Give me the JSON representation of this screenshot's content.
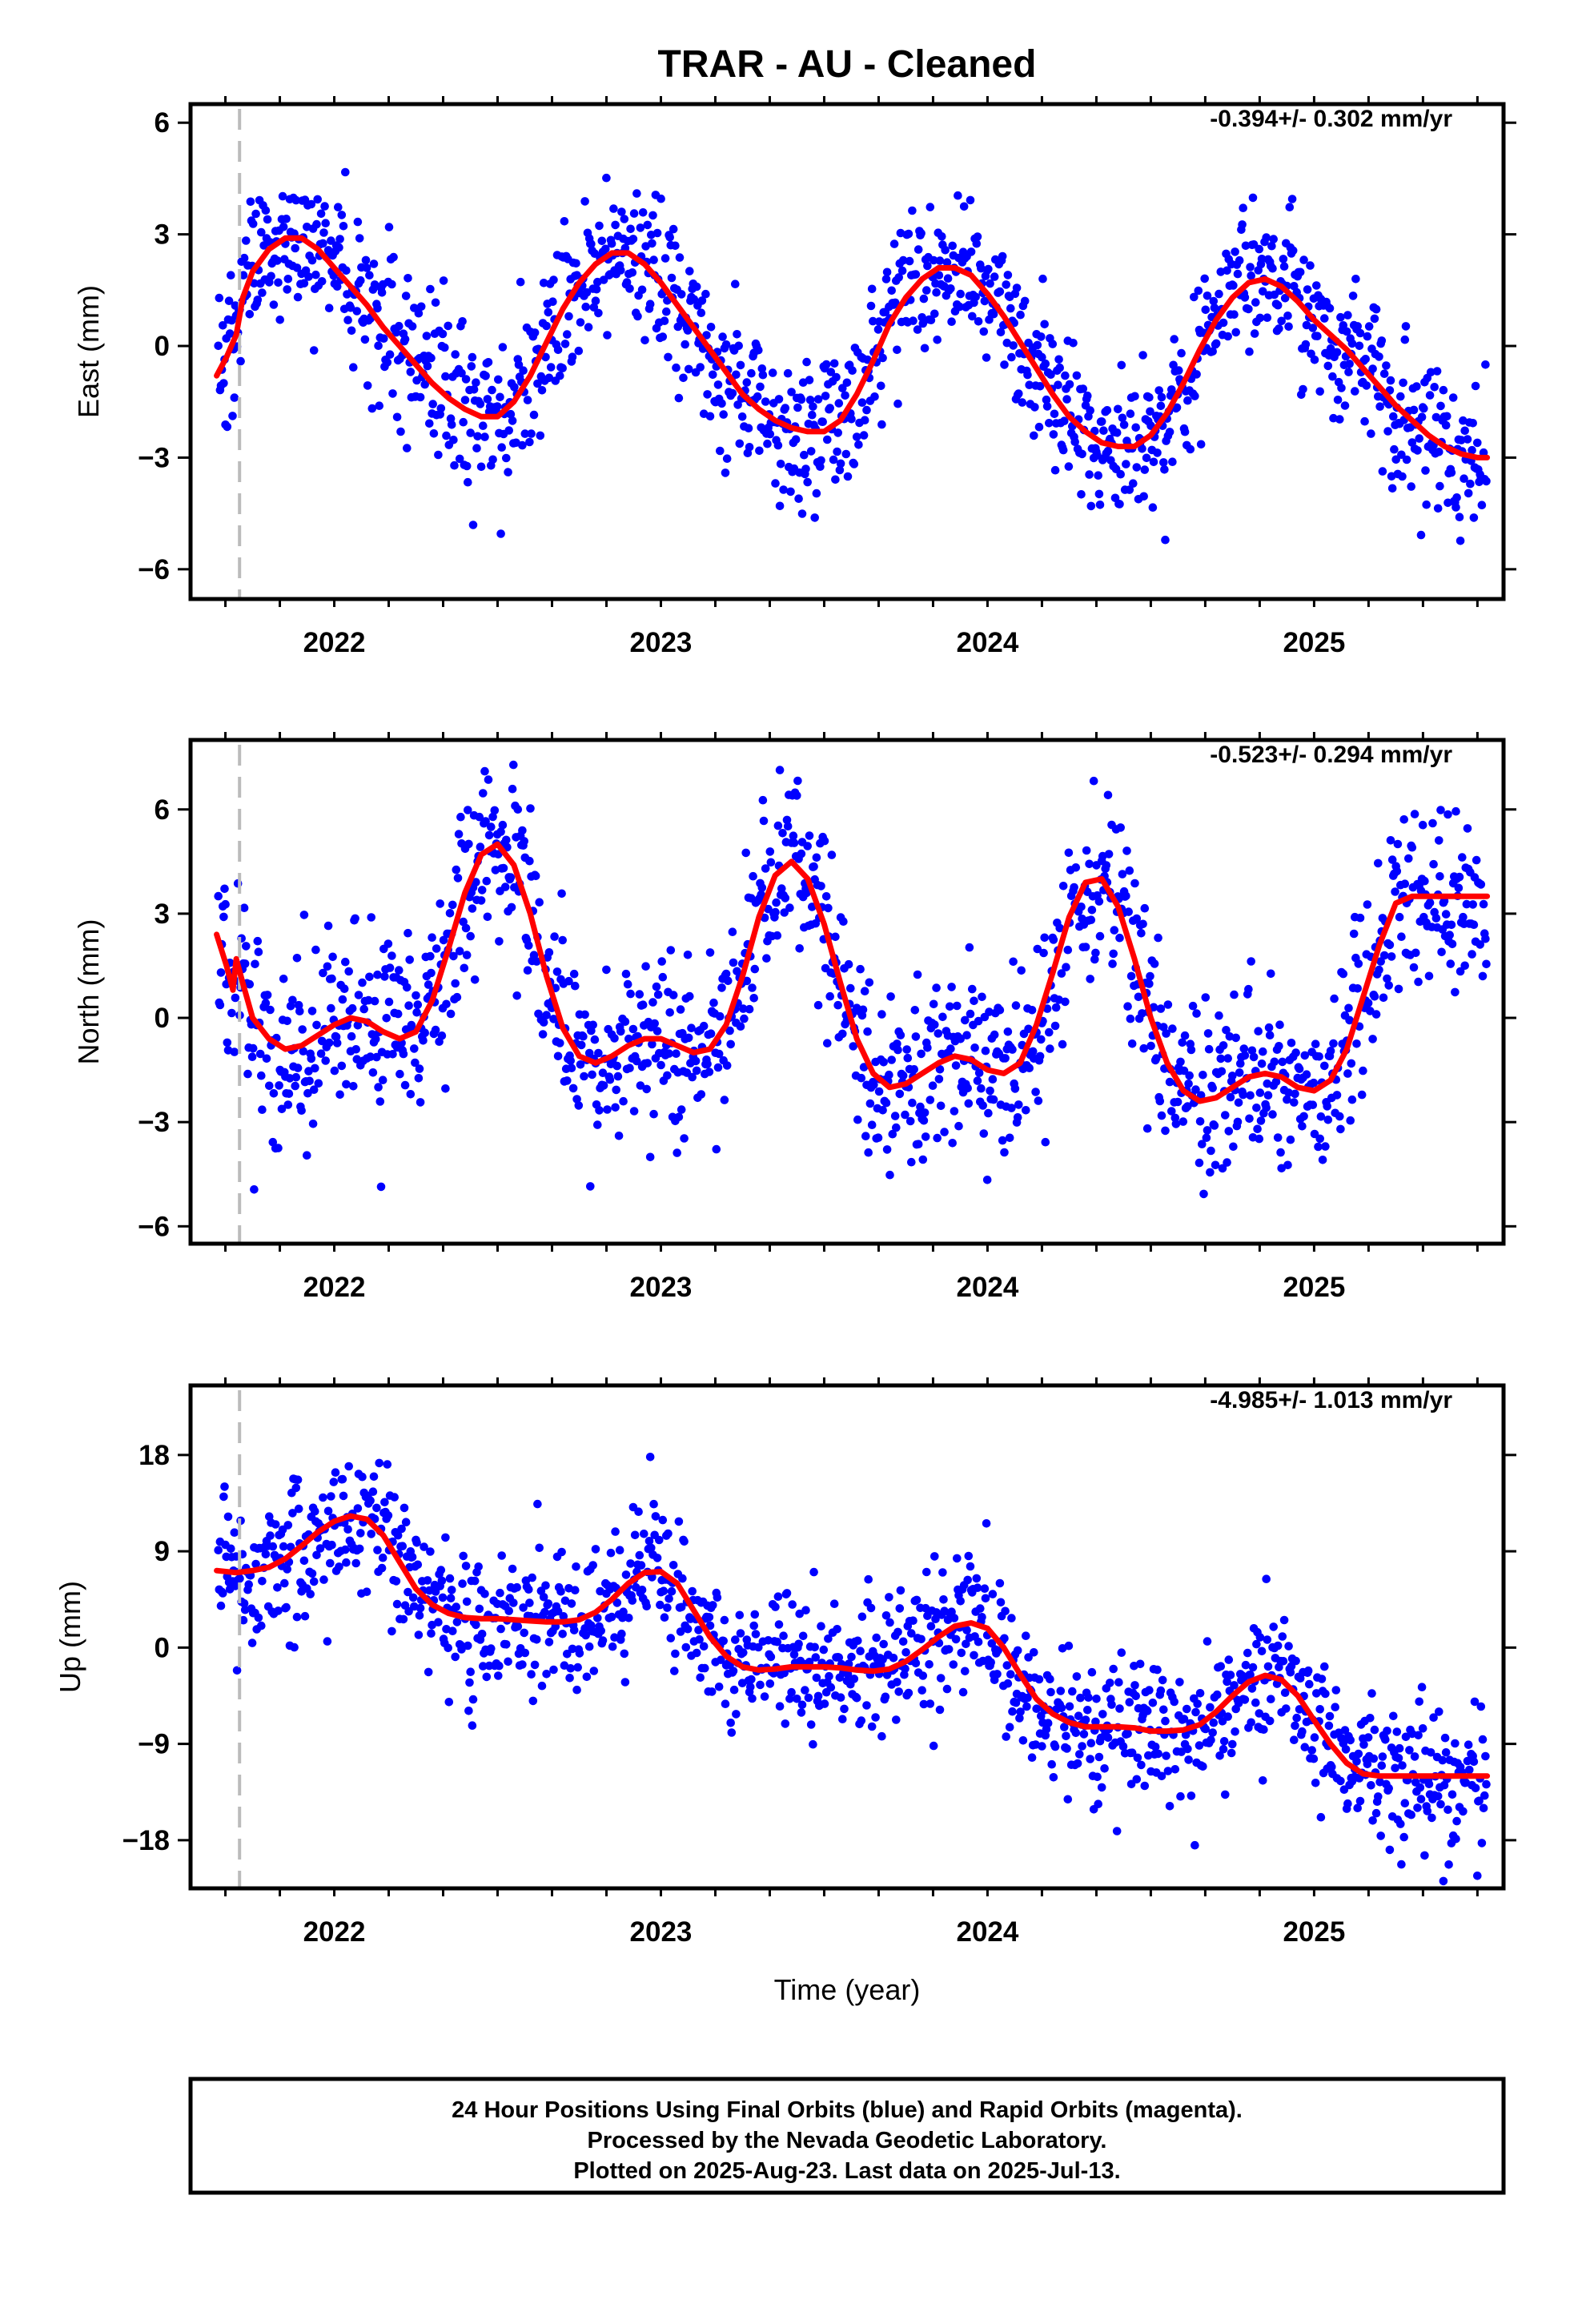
{
  "title": "TRAR  - AU - Cleaned",
  "xlabel": "Time (year)",
  "colors": {
    "points": "#0000ff",
    "model": "#ff0000",
    "marker": "#bbbbbb",
    "frame": "#000000"
  },
  "footer": {
    "line1": "24 Hour Positions Using Final Orbits (blue) and Rapid Orbits (magenta).",
    "line2": "Processed by the Nevada Geodetic Laboratory.",
    "line3": "Plotted on 2025-Aug-23. Last data on 2025-Jul-13."
  },
  "chart_data": [
    {
      "type": "scatter",
      "component": "east",
      "ylabel": "East (mm)",
      "rate": "-0.394+/- 0.302 mm/yr",
      "xlim": [
        2021.56,
        2025.58
      ],
      "ylim": [
        -6.8,
        6.5
      ],
      "yticks": [
        -6,
        -3,
        0,
        3,
        6
      ],
      "ytick_labels": [
        "−6",
        "−3",
        "0",
        "3",
        "6"
      ],
      "xticks": [
        2022,
        2023,
        2024,
        2025
      ],
      "xtick_labels": [
        "2022",
        "2023",
        "2024",
        "2025"
      ],
      "minor_x_step": 0.16666667,
      "equipment_change": 2021.71,
      "series": [
        {
          "kind": "model",
          "x": [
            2021.64,
            2021.67,
            2021.7,
            2021.72,
            2021.75,
            2021.8,
            2021.85,
            2021.9,
            2021.95,
            2022.0,
            2022.05,
            2022.1,
            2022.15,
            2022.2,
            2022.25,
            2022.3,
            2022.35,
            2022.4,
            2022.45,
            2022.5,
            2022.55,
            2022.6,
            2022.65,
            2022.7,
            2022.75,
            2022.8,
            2022.85,
            2022.9,
            2022.95,
            2023.0,
            2023.05,
            2023.1,
            2023.15,
            2023.2,
            2023.25,
            2023.3,
            2023.35,
            2023.4,
            2023.45,
            2023.5,
            2023.55,
            2023.6,
            2023.65,
            2023.7,
            2023.75,
            2023.8,
            2023.85,
            2023.9,
            2023.95,
            2024.0,
            2024.05,
            2024.1,
            2024.15,
            2024.2,
            2024.25,
            2024.3,
            2024.35,
            2024.4,
            2024.45,
            2024.5,
            2024.55,
            2024.6,
            2024.65,
            2024.7,
            2024.75,
            2024.8,
            2024.85,
            2024.9,
            2024.95,
            2025.0,
            2025.05,
            2025.1,
            2025.15,
            2025.2,
            2025.25,
            2025.3,
            2025.35,
            2025.4,
            2025.45,
            2025.5,
            2025.53
          ],
          "y": [
            -0.8,
            -0.3,
            0.3,
            1.3,
            2.0,
            2.6,
            2.9,
            2.9,
            2.6,
            2.1,
            1.6,
            1.1,
            0.5,
            0.0,
            -0.5,
            -1.0,
            -1.4,
            -1.7,
            -1.9,
            -1.9,
            -1.5,
            -0.8,
            0.1,
            1.0,
            1.7,
            2.2,
            2.5,
            2.5,
            2.2,
            1.7,
            1.1,
            0.5,
            -0.1,
            -0.7,
            -1.3,
            -1.7,
            -2.0,
            -2.2,
            -2.3,
            -2.3,
            -2.0,
            -1.3,
            -0.4,
            0.6,
            1.3,
            1.8,
            2.1,
            2.1,
            1.9,
            1.4,
            0.8,
            0.1,
            -0.6,
            -1.3,
            -1.9,
            -2.3,
            -2.6,
            -2.7,
            -2.7,
            -2.4,
            -1.8,
            -1.0,
            -0.1,
            0.7,
            1.3,
            1.7,
            1.8,
            1.6,
            1.2,
            0.7,
            0.3,
            -0.1,
            -0.6,
            -1.1,
            -1.6,
            -2.0,
            -2.4,
            -2.7,
            -2.9,
            -3.0,
            -3.0
          ]
        }
      ]
    },
    {
      "type": "scatter",
      "component": "north",
      "ylabel": "North (mm)",
      "rate": "-0.523+/- 0.294 mm/yr",
      "xlim": [
        2021.56,
        2025.58
      ],
      "ylim": [
        -6.5,
        8.0
      ],
      "yticks": [
        -6,
        -3,
        0,
        3,
        6
      ],
      "ytick_labels": [
        "−6",
        "−3",
        "0",
        "3",
        "6"
      ],
      "xticks": [
        2022,
        2023,
        2024,
        2025
      ],
      "xtick_labels": [
        "2022",
        "2023",
        "2024",
        "2025"
      ],
      "minor_x_step": 0.16666667,
      "equipment_change": 2021.71,
      "series": [
        {
          "kind": "model",
          "x": [
            2021.64,
            2021.67,
            2021.69,
            2021.7,
            2021.72,
            2021.75,
            2021.8,
            2021.85,
            2021.9,
            2021.95,
            2022.0,
            2022.05,
            2022.1,
            2022.15,
            2022.2,
            2022.25,
            2022.3,
            2022.35,
            2022.4,
            2022.45,
            2022.5,
            2022.55,
            2022.6,
            2022.65,
            2022.7,
            2022.75,
            2022.8,
            2022.85,
            2022.9,
            2022.95,
            2023.0,
            2023.05,
            2023.1,
            2023.15,
            2023.2,
            2023.25,
            2023.3,
            2023.35,
            2023.4,
            2023.45,
            2023.5,
            2023.55,
            2023.6,
            2023.65,
            2023.7,
            2023.75,
            2023.8,
            2023.85,
            2023.9,
            2023.95,
            2024.0,
            2024.05,
            2024.1,
            2024.15,
            2024.2,
            2024.25,
            2024.3,
            2024.35,
            2024.4,
            2024.45,
            2024.5,
            2024.55,
            2024.6,
            2024.65,
            2024.7,
            2024.75,
            2024.8,
            2024.85,
            2024.9,
            2024.95,
            2025.0,
            2025.05,
            2025.1,
            2025.15,
            2025.2,
            2025.25,
            2025.3,
            2025.35,
            2025.4,
            2025.45,
            2025.5,
            2025.53
          ],
          "y": [
            2.4,
            1.5,
            0.8,
            1.7,
            1.0,
            0.0,
            -0.6,
            -0.9,
            -0.8,
            -0.5,
            -0.2,
            0.0,
            -0.1,
            -0.4,
            -0.6,
            -0.4,
            0.5,
            2.0,
            3.6,
            4.7,
            5.0,
            4.4,
            3.0,
            1.2,
            -0.3,
            -1.1,
            -1.3,
            -1.1,
            -0.8,
            -0.6,
            -0.6,
            -0.8,
            -1.0,
            -0.9,
            -0.2,
            1.2,
            2.9,
            4.1,
            4.5,
            4.0,
            2.7,
            1.0,
            -0.6,
            -1.6,
            -2.0,
            -1.9,
            -1.6,
            -1.3,
            -1.1,
            -1.2,
            -1.5,
            -1.6,
            -1.3,
            -0.2,
            1.3,
            2.9,
            3.9,
            4.0,
            3.2,
            1.7,
            0.0,
            -1.3,
            -2.1,
            -2.4,
            -2.3,
            -2.0,
            -1.7,
            -1.6,
            -1.7,
            -2.0,
            -2.1,
            -1.8,
            -0.9,
            0.6,
            2.1,
            3.3,
            3.5,
            3.5,
            3.5,
            3.5,
            3.5,
            3.5
          ]
        }
      ]
    },
    {
      "type": "scatter",
      "component": "up",
      "ylabel": "Up (mm)",
      "rate": "-4.985+/- 1.013 mm/yr",
      "xlim": [
        2021.56,
        2025.58
      ],
      "ylim": [
        -22.5,
        24.5
      ],
      "yticks": [
        -18,
        -9,
        0,
        9,
        18
      ],
      "ytick_labels": [
        "−18",
        "−9",
        "0",
        "9",
        "18"
      ],
      "xticks": [
        2022,
        2023,
        2024,
        2025
      ],
      "xtick_labels": [
        "2022",
        "2023",
        "2024",
        "2025"
      ],
      "minor_x_step": 0.16666667,
      "equipment_change": 2021.71,
      "series": [
        {
          "kind": "model",
          "x": [
            2021.64,
            2021.7,
            2021.75,
            2021.8,
            2021.85,
            2021.9,
            2021.95,
            2022.0,
            2022.05,
            2022.1,
            2022.15,
            2022.2,
            2022.25,
            2022.3,
            2022.35,
            2022.4,
            2022.45,
            2022.5,
            2022.55,
            2022.6,
            2022.65,
            2022.7,
            2022.75,
            2022.8,
            2022.85,
            2022.9,
            2022.95,
            2023.0,
            2023.05,
            2023.1,
            2023.15,
            2023.2,
            2023.25,
            2023.3,
            2023.35,
            2023.4,
            2023.45,
            2023.5,
            2023.55,
            2023.6,
            2023.65,
            2023.7,
            2023.75,
            2023.8,
            2023.85,
            2023.9,
            2023.95,
            2024.0,
            2024.05,
            2024.1,
            2024.15,
            2024.2,
            2024.25,
            2024.3,
            2024.35,
            2024.4,
            2024.45,
            2024.5,
            2024.55,
            2024.6,
            2024.65,
            2024.7,
            2024.75,
            2024.8,
            2024.85,
            2024.9,
            2024.95,
            2025.0,
            2025.05,
            2025.1,
            2025.15,
            2025.2,
            2025.25,
            2025.3,
            2025.35,
            2025.4,
            2025.45,
            2025.5,
            2025.53
          ],
          "y": [
            7.2,
            7.0,
            7.2,
            7.5,
            8.3,
            9.5,
            10.8,
            11.8,
            12.3,
            12.0,
            10.5,
            8.0,
            5.5,
            4.0,
            3.2,
            2.8,
            2.7,
            2.7,
            2.6,
            2.5,
            2.4,
            2.4,
            2.6,
            3.3,
            4.5,
            6.0,
            7.0,
            7.1,
            6.0,
            3.5,
            1.0,
            -0.8,
            -1.8,
            -2.1,
            -2.0,
            -1.8,
            -1.8,
            -1.8,
            -1.9,
            -2.1,
            -2.2,
            -2.0,
            -1.3,
            -0.2,
            1.0,
            2.0,
            2.3,
            1.8,
            0.0,
            -2.5,
            -4.8,
            -6.2,
            -7.0,
            -7.4,
            -7.4,
            -7.4,
            -7.5,
            -7.8,
            -7.8,
            -7.7,
            -7.2,
            -6.0,
            -4.5,
            -3.2,
            -2.6,
            -3.0,
            -4.5,
            -6.8,
            -9.0,
            -10.8,
            -11.8,
            -12.0,
            -12.0,
            -12.0,
            -12.0,
            -12.0,
            -12.0,
            -12.0,
            -12.0
          ]
        }
      ]
    }
  ]
}
